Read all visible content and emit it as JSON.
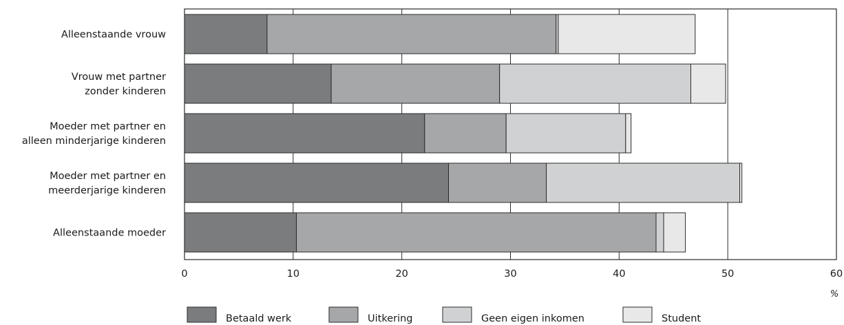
{
  "chart_data": {
    "type": "bar",
    "orientation": "horizontal",
    "stacked": true,
    "title": "",
    "xlabel": "",
    "ylabel": "",
    "unit_label": "%",
    "xlim": [
      0,
      60
    ],
    "xticks": [
      0,
      10,
      20,
      30,
      40,
      50,
      60
    ],
    "grid": true,
    "legend_position": "bottom",
    "categories": [
      [
        "Alleenstaande vrouw"
      ],
      [
        "Vrouw met partner",
        "zonder kinderen"
      ],
      [
        "Moeder met partner en",
        "alleen minderjarige kinderen"
      ],
      [
        "Moeder met partner en",
        "meerderjarige kinderen"
      ],
      [
        "Alleenstaande moeder"
      ]
    ],
    "series": [
      {
        "name": "Betaald werk",
        "color": "#7b7c7e",
        "values": [
          7.6,
          13.5,
          22.1,
          24.3,
          10.3
        ]
      },
      {
        "name": "Uitkering",
        "color": "#a6a7a9",
        "values": [
          26.6,
          15.5,
          7.5,
          9.0,
          33.1
        ]
      },
      {
        "name": "Geen eigen inkomen",
        "color": "#d0d1d3",
        "values": [
          0.2,
          17.6,
          11.0,
          17.8,
          0.7
        ]
      },
      {
        "name": "Student",
        "color": "#e8e8e9",
        "values": [
          12.6,
          3.2,
          0.5,
          0.2,
          2.0
        ]
      }
    ]
  }
}
